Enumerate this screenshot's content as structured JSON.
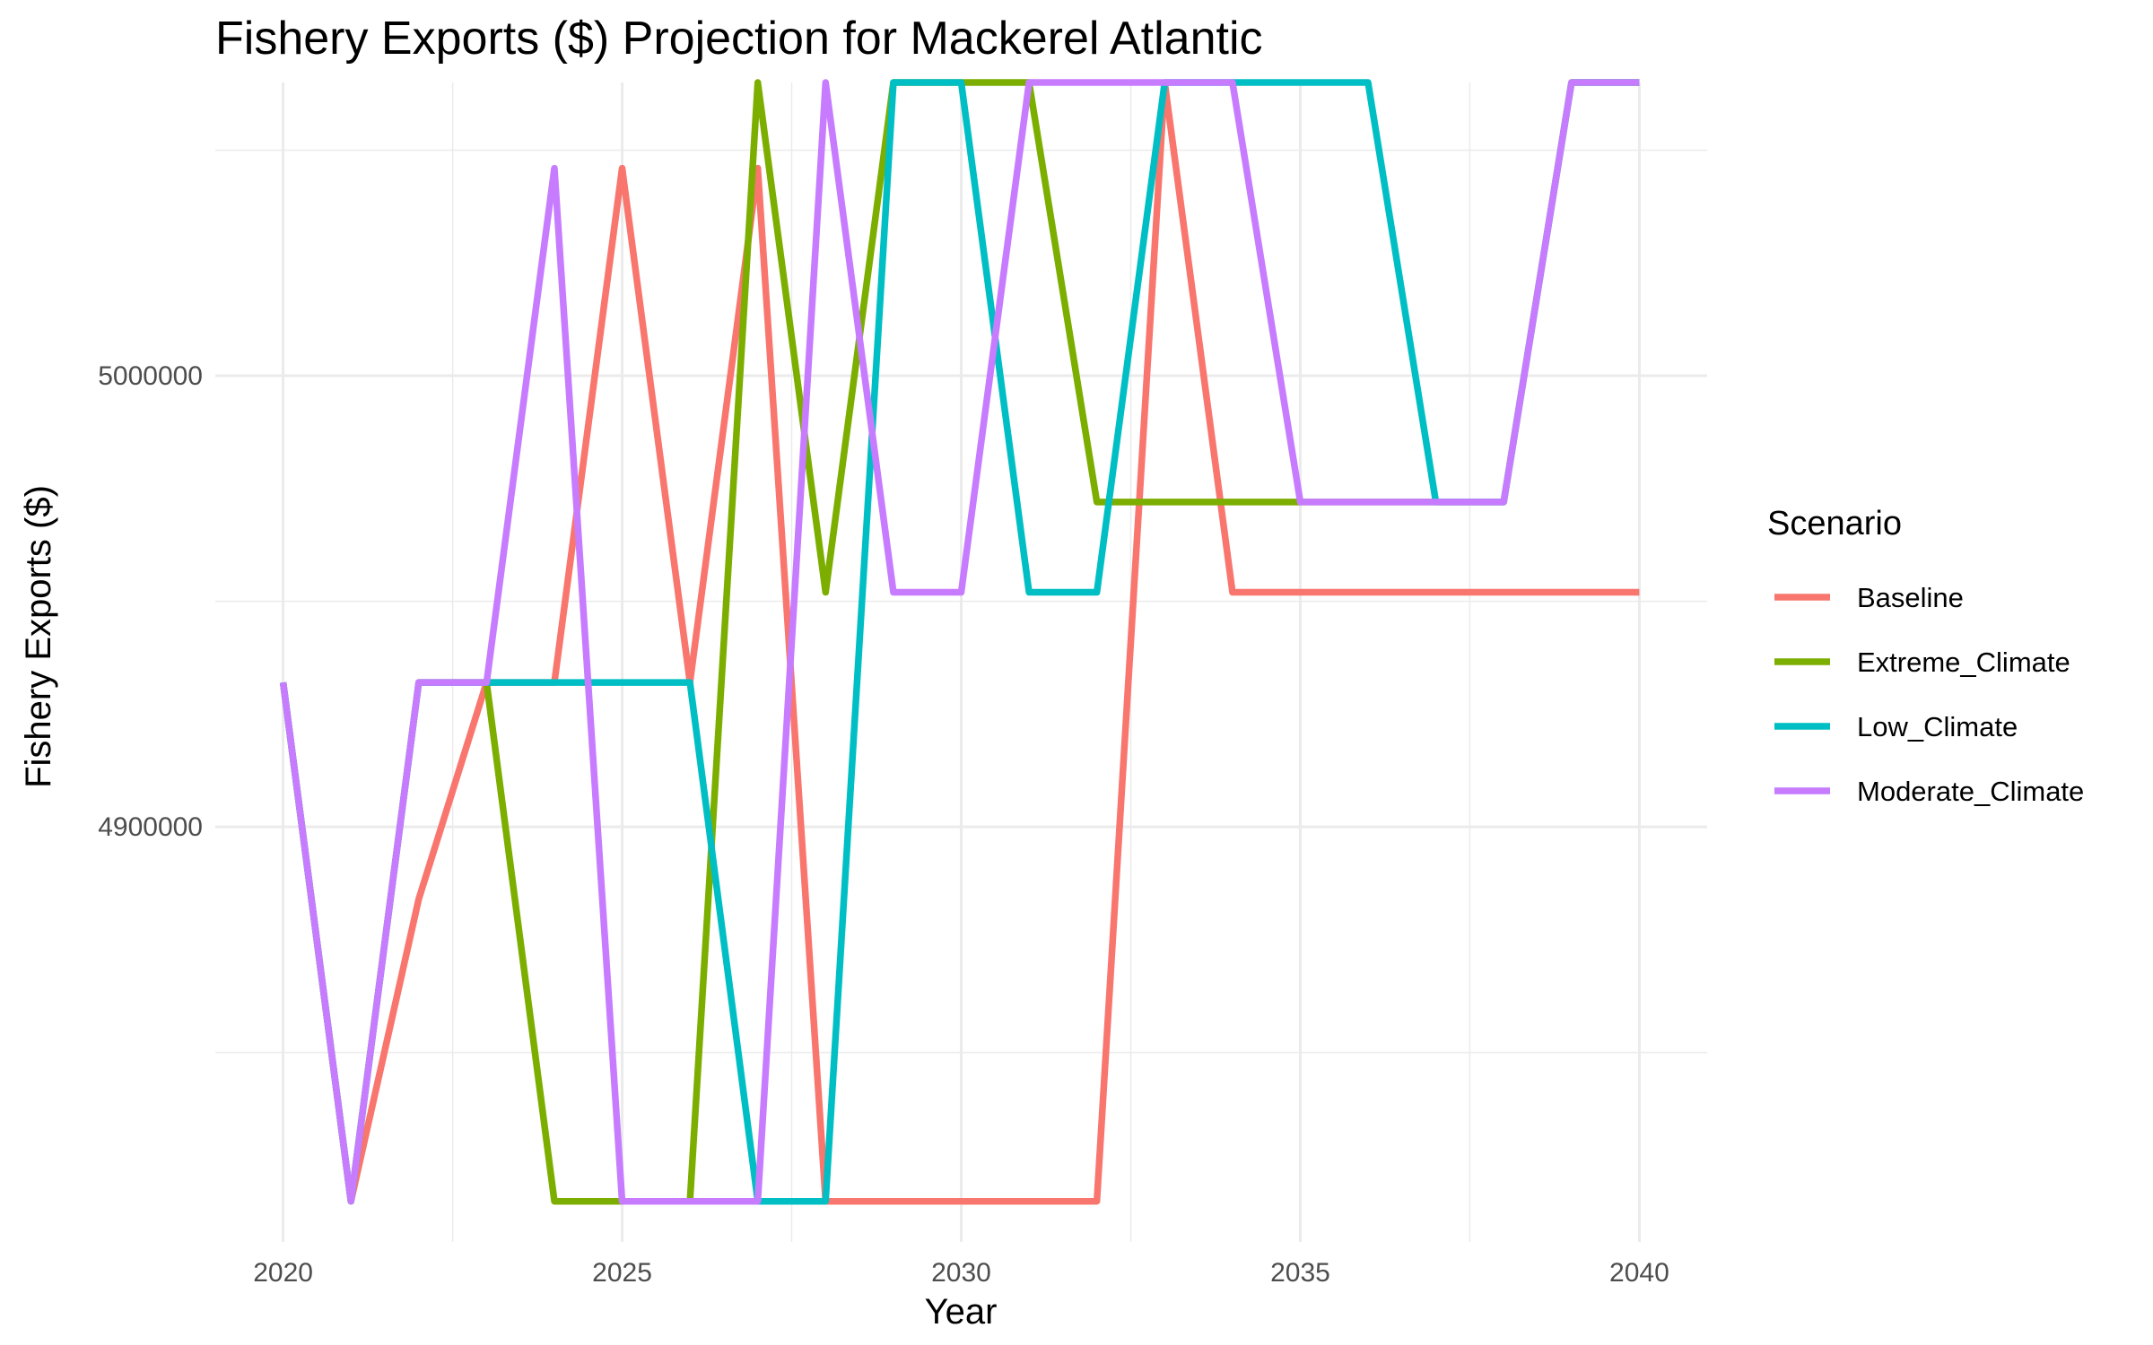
{
  "chart_data": {
    "type": "line",
    "title": "Fishery Exports ($) Projection for Mackerel Atlantic",
    "xlabel": "Year",
    "ylabel": "Fishery Exports ($)",
    "xlim": [
      2019.0,
      2041.0
    ],
    "ylim": [
      4808000,
      5065000
    ],
    "x_ticks": [
      2020,
      2025,
      2030,
      2035,
      2040
    ],
    "y_ticks": [
      4900000,
      5000000
    ],
    "y_tick_labels": [
      "4900000",
      "5000000"
    ],
    "grid": true,
    "legend": {
      "title": "Scenario",
      "position": "right"
    },
    "x": [
      2020,
      2021,
      2022,
      2023,
      2024,
      2025,
      2026,
      2027,
      2028,
      2029,
      2030,
      2031,
      2032,
      2033,
      2034,
      2035,
      2036,
      2037,
      2038,
      2039,
      2040
    ],
    "series": [
      {
        "name": "Baseline",
        "color": "#F8766D",
        "values": [
          4932000,
          4817000,
          4884000,
          4932000,
          4932000,
          5046000,
          4932000,
          5046000,
          4817000,
          4817000,
          4817000,
          4817000,
          4817000,
          5065000,
          4952000,
          4952000,
          4952000,
          4952000,
          4952000,
          4952000,
          4952000
        ]
      },
      {
        "name": "Extreme_Climate",
        "color": "#7CAE00",
        "values": [
          4932000,
          4817000,
          4932000,
          4932000,
          4817000,
          4817000,
          4817000,
          5065000,
          4952000,
          5065000,
          5065000,
          5065000,
          4972000,
          4972000,
          4972000,
          4972000,
          4972000,
          4972000,
          4972000,
          5065000,
          5065000
        ]
      },
      {
        "name": "Low_Climate",
        "color": "#00BFC4",
        "values": [
          4932000,
          4817000,
          4932000,
          4932000,
          4932000,
          4932000,
          4932000,
          4817000,
          4817000,
          5065000,
          5065000,
          4952000,
          4952000,
          5065000,
          5065000,
          5065000,
          5065000,
          4972000,
          4972000,
          5065000,
          5065000
        ]
      },
      {
        "name": "Moderate_Climate",
        "color": "#C77CFF",
        "values": [
          4932000,
          4817000,
          4932000,
          4932000,
          5046000,
          4817000,
          4817000,
          4817000,
          5065000,
          4952000,
          4952000,
          5065000,
          5065000,
          5065000,
          5065000,
          4972000,
          4972000,
          4972000,
          4972000,
          5065000,
          5065000
        ]
      }
    ]
  }
}
